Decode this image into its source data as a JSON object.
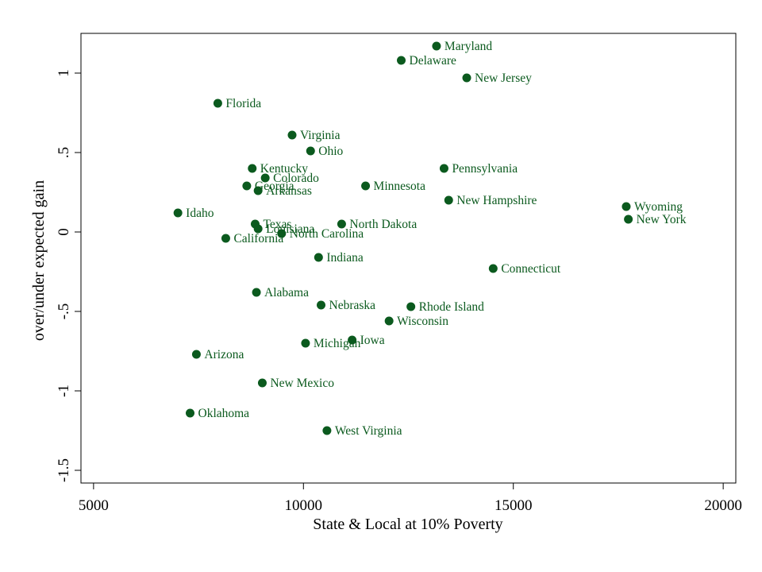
{
  "chart_data": {
    "type": "scatter",
    "xlabel": "State & Local at 10% Poverty",
    "ylabel": "over/under expected gain",
    "xlim": [
      4700,
      20300
    ],
    "ylim": [
      -1.58,
      1.25
    ],
    "xticks": [
      5000,
      10000,
      15000,
      20000
    ],
    "yticks": [
      1,
      0.5,
      0,
      -0.5,
      -1,
      -1.5
    ],
    "ytick_labels": [
      "1",
      ".5",
      "0",
      "-.5",
      "-1",
      "-1.5"
    ],
    "grid": false,
    "marker_color": "#0b5a1e",
    "label_color": "#0b5a1e",
    "points": [
      {
        "label": "Maryland",
        "x": 13170,
        "y": 1.17
      },
      {
        "label": "Delaware",
        "x": 12330,
        "y": 1.08
      },
      {
        "label": "New Jersey",
        "x": 13890,
        "y": 0.97
      },
      {
        "label": "Florida",
        "x": 7960,
        "y": 0.81
      },
      {
        "label": "Virginia",
        "x": 9730,
        "y": 0.61
      },
      {
        "label": "Ohio",
        "x": 10170,
        "y": 0.51
      },
      {
        "label": "Kentucky",
        "x": 8780,
        "y": 0.4
      },
      {
        "label": "Pennsylvania",
        "x": 13350,
        "y": 0.4
      },
      {
        "label": "Colorado",
        "x": 9090,
        "y": 0.34
      },
      {
        "label": "Minnesota",
        "x": 11480,
        "y": 0.29
      },
      {
        "label": "Georgia",
        "x": 8650,
        "y": 0.29
      },
      {
        "label": "Arkansas",
        "x": 8920,
        "y": 0.26
      },
      {
        "label": "New Hampshire",
        "x": 13460,
        "y": 0.2
      },
      {
        "label": "Wyoming",
        "x": 17690,
        "y": 0.16
      },
      {
        "label": "Idaho",
        "x": 7010,
        "y": 0.12
      },
      {
        "label": "New York",
        "x": 17740,
        "y": 0.08
      },
      {
        "label": "North Dakota",
        "x": 10910,
        "y": 0.05
      },
      {
        "label": "Texas",
        "x": 8850,
        "y": 0.05
      },
      {
        "label": "Louisiana",
        "x": 8920,
        "y": 0.02
      },
      {
        "label": "North Carolina",
        "x": 9480,
        "y": -0.01
      },
      {
        "label": "California",
        "x": 8150,
        "y": -0.04
      },
      {
        "label": "Indiana",
        "x": 10360,
        "y": -0.16
      },
      {
        "label": "Connecticut",
        "x": 14520,
        "y": -0.23
      },
      {
        "label": "Alabama",
        "x": 8880,
        "y": -0.38
      },
      {
        "label": "Nebraska",
        "x": 10420,
        "y": -0.46
      },
      {
        "label": "Rhode Island",
        "x": 12560,
        "y": -0.47
      },
      {
        "label": "Wisconsin",
        "x": 12040,
        "y": -0.56
      },
      {
        "label": "Iowa",
        "x": 11160,
        "y": -0.68
      },
      {
        "label": "Michigan",
        "x": 10050,
        "y": -0.7
      },
      {
        "label": "Arizona",
        "x": 7450,
        "y": -0.77
      },
      {
        "label": "New Mexico",
        "x": 9020,
        "y": -0.95
      },
      {
        "label": "Oklahoma",
        "x": 7300,
        "y": -1.14
      },
      {
        "label": "West Virginia",
        "x": 10560,
        "y": -1.25
      }
    ]
  }
}
